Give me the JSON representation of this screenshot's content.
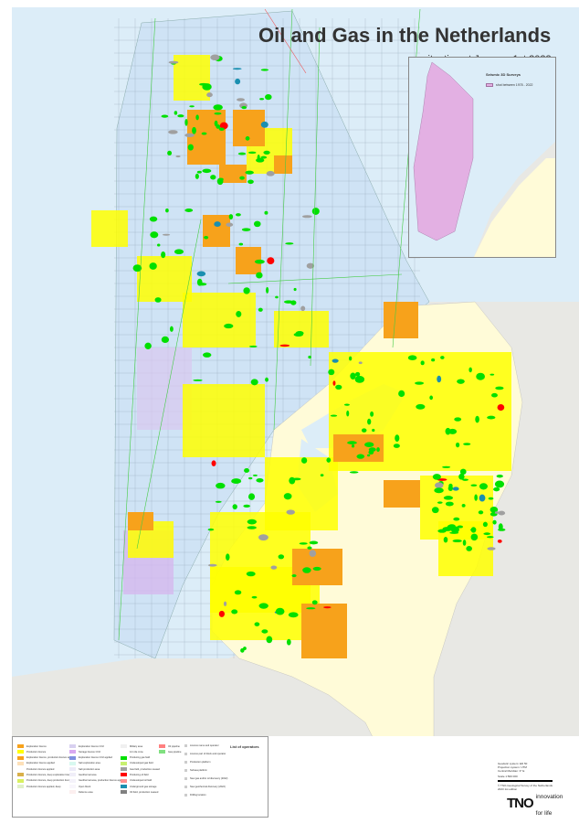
{
  "header": {
    "title": "Oil and Gas in the Netherlands",
    "subtitle": "situation at January 1st 2023"
  },
  "inset": {
    "title": "Seismic 3D Surveys",
    "legend_label": "shot between 1978 - 2022",
    "color": "#e3b0e3"
  },
  "colors": {
    "sea": "#dcedf8",
    "land": "#e8e8e4",
    "netherlands": "#fffbd8",
    "exploration_licence": "#f7a21b",
    "production_licence": "#ffff00",
    "producing_gas_field": "#00e000",
    "producing_oil_field": "#ff0000",
    "gas_storage": "#1a8fb0"
  },
  "legend": {
    "col1": [
      {
        "label": "Exploration licence",
        "color": "#f7a21b"
      },
      {
        "label": "Production licence",
        "color": "#ffff00"
      },
      {
        "label": "Exploration licence, production licence applied",
        "color": "#f7a21b"
      },
      {
        "label": "Exploration licence applied",
        "color": "#fde0b8"
      },
      {
        "label": "Production licence applied",
        "color": "#ffffff"
      },
      {
        "label": "Production licence, deep exploration licence",
        "color": "#d9b04a"
      },
      {
        "label": "Production licence, deep production licence",
        "color": "#d8f060"
      },
      {
        "label": "Production licence applied, deep",
        "color": "#e0f0c8"
      }
    ],
    "col2": [
      {
        "label": "Exploration licence CO2",
        "color": "#d8d0f0"
      },
      {
        "label": "Storage licence CO2",
        "color": "#d8a8f0"
      },
      {
        "label": "Exploration licence CO2 applied",
        "color": "#8090e0"
      },
      {
        "label": "Salt exploration area",
        "color": "#d8f8f0"
      },
      {
        "label": "Salt production area",
        "color": "#ecebf8"
      },
      {
        "label": "Geothermal area",
        "color": "#f0eef8"
      },
      {
        "label": "Geothermal area, production licence applied",
        "color": "#f4f2fa"
      },
      {
        "label": "Open block",
        "color": "#f8f6fc"
      },
      {
        "label": "Defence area",
        "color": "#fcefef"
      }
    ],
    "col3": [
      {
        "label": "Military area",
        "color": "#f0f0f0"
      },
      {
        "label": "12 mile zone",
        "color": "#ffffff"
      },
      {
        "label": "Producing gas field",
        "color": "#00e000"
      },
      {
        "label": "Undeveloped gas field",
        "color": "#c8f070"
      },
      {
        "label": "Gas field, production ceased",
        "color": "#a0a0a0"
      },
      {
        "label": "Producing oil field",
        "color": "#ff0000"
      },
      {
        "label": "Undeveloped oil field",
        "color": "#ff9090"
      },
      {
        "label": "Underground gas storage",
        "color": "#1a8fb0"
      },
      {
        "label": "Oil field, production ceased",
        "color": "#808080"
      }
    ],
    "col4": [
      {
        "label": "Oil pipeline",
        "color": "#ff8080"
      },
      {
        "label": "Gas pipeline",
        "color": "#80e080"
      }
    ],
    "col5": [
      {
        "label": "Licence name and operator"
      },
      {
        "label": "Licence part of block and operator"
      },
      {
        "label": "Production platform"
      },
      {
        "label": "Subsea platform"
      },
      {
        "label": "New gas and/or oil discovery (2022)"
      },
      {
        "label": "New geothermal discovery (2022)"
      },
      {
        "label": "Drilling location"
      }
    ],
    "operators_title": "List of operators"
  },
  "info": {
    "geodetic": "Geodetic system: ED 50",
    "projection": "Projection system: UTM",
    "meridian": "Central Meridian: 3° E",
    "scale": "Scale 1:500 000",
    "copyright": "© TNO-Geological Survey of the Netherlands",
    "edition": "2023 1st edition"
  },
  "logo": {
    "brand": "TNO",
    "tagline1": "innovation",
    "tagline2": "for life"
  }
}
